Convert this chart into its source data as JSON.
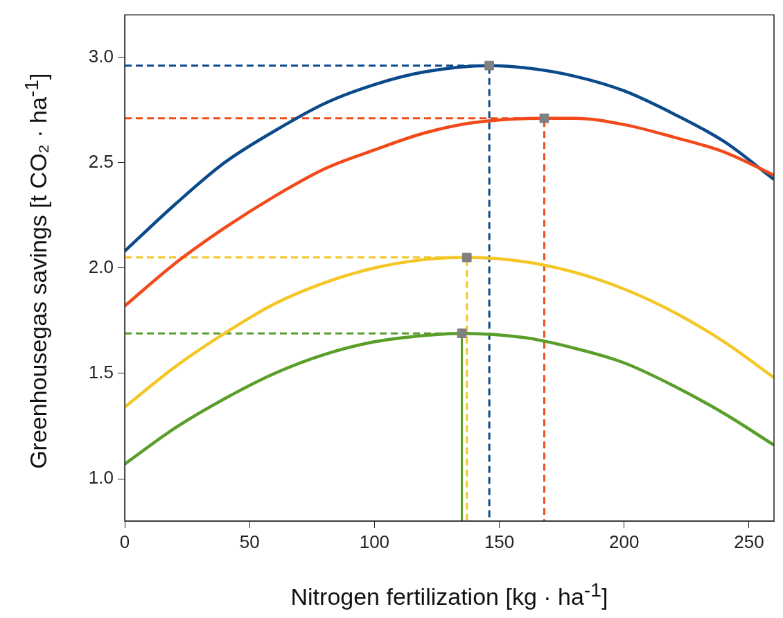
{
  "chart_data": {
    "type": "line",
    "xlabel": "Nitrogen fertilization  [kg · ha$^{-1}$]",
    "ylabel": "Greenhousegas savings   [t CO₂ · ha$^{-1}$]",
    "xlim": [
      0,
      260
    ],
    "xticks": [
      0,
      50,
      100,
      150,
      200,
      250
    ],
    "ylim": [
      0.8,
      3.2
    ],
    "yticks": [
      {
        "value": 1,
        "label": "1.0"
      },
      1.5,
      {
        "value": 2,
        "label": "2.0"
      },
      2.5,
      {
        "value": 3,
        "label": "3.0"
      }
    ],
    "legend": false,
    "series": [
      {
        "type": "line",
        "color": "#0b4a8a",
        "line_style": "dashed",
        "marker": "none",
        "x": [
          0,
          146,
          146
        ],
        "values": [
          2.96,
          2.96,
          0.8
        ]
      },
      {
        "type": "line",
        "color": "#f24a1a",
        "line_style": "dashed",
        "marker": "none",
        "x": [
          0,
          168,
          168
        ],
        "values": [
          2.71,
          2.71,
          0.8
        ]
      },
      {
        "type": "line",
        "color": "#f5c726",
        "line_style": "dashed",
        "marker": "none",
        "x": [
          0,
          137,
          137
        ],
        "values": [
          2.05,
          2.05,
          0.8
        ]
      },
      {
        "type": "line",
        "color": "#5a9e2a",
        "line_style": "dashed",
        "marker": "none",
        "x": [
          0,
          135
        ],
        "values": [
          1.69,
          1.69
        ]
      },
      {
        "type": "line",
        "color": "#5a9e2a",
        "line_style": "solid",
        "marker": "none",
        "x": [
          135,
          135
        ],
        "values": [
          1.69,
          0.8
        ]
      },
      {
        "color": "#0b4a8a",
        "line_style": "solid",
        "marker": "none",
        "x": [
          0,
          20,
          40,
          60,
          80,
          100,
          120,
          146,
          160,
          180,
          200,
          220,
          240,
          260
        ],
        "values": [
          2.08,
          2.3,
          2.5,
          2.65,
          2.78,
          2.87,
          2.93,
          2.96,
          2.95,
          2.91,
          2.84,
          2.73,
          2.6,
          2.42
        ]
      },
      {
        "color": "#f24a1a",
        "line_style": "solid",
        "marker": "none",
        "x": [
          0,
          20,
          40,
          60,
          80,
          100,
          120,
          140,
          168,
          180,
          200,
          220,
          240,
          260
        ],
        "values": [
          1.82,
          2.02,
          2.19,
          2.34,
          2.47,
          2.56,
          2.64,
          2.69,
          2.71,
          2.71,
          2.68,
          2.62,
          2.55,
          2.44
        ]
      },
      {
        "color": "#f5c726",
        "line_style": "solid",
        "marker": "none",
        "x": [
          0,
          20,
          40,
          60,
          80,
          100,
          120,
          137,
          160,
          180,
          200,
          220,
          240,
          260
        ],
        "values": [
          1.34,
          1.53,
          1.69,
          1.83,
          1.93,
          2.0,
          2.04,
          2.05,
          2.03,
          1.98,
          1.9,
          1.79,
          1.65,
          1.48
        ]
      },
      {
        "color": "#5a9e2a",
        "line_style": "solid",
        "marker": "none",
        "x": [
          0,
          20,
          40,
          60,
          80,
          100,
          120,
          135,
          160,
          180,
          200,
          220,
          240,
          260
        ],
        "values": [
          1.07,
          1.24,
          1.38,
          1.5,
          1.59,
          1.65,
          1.68,
          1.69,
          1.67,
          1.62,
          1.55,
          1.44,
          1.31,
          1.16
        ]
      },
      {
        "type": "scatter",
        "color": "#808080",
        "marker": "square",
        "x": [
          146,
          168,
          137,
          135
        ],
        "values": [
          2.96,
          2.71,
          2.05,
          1.69
        ]
      }
    ]
  }
}
